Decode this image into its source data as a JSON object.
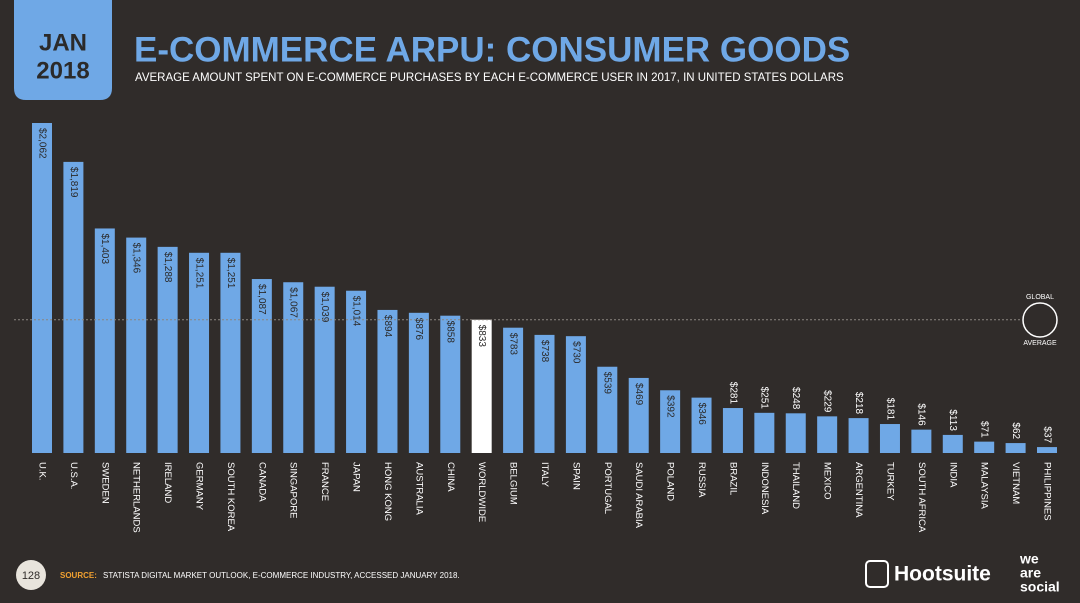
{
  "header": {
    "month": "JAN",
    "year": "2018"
  },
  "chart_data": {
    "type": "bar",
    "title": "E-COMMERCE ARPU: CONSUMER GOODS",
    "subtitle": "AVERAGE AMOUNT SPENT ON E-COMMERCE PURCHASES BY EACH E-COMMERCE USER IN 2017, IN UNITED STATES DOLLARS",
    "categories": [
      "U.K.",
      "U.S.A.",
      "SWEDEN",
      "NETHERLANDS",
      "IRELAND",
      "GERMANY",
      "SOUTH KOREA",
      "CANADA",
      "SINGAPORE",
      "FRANCE",
      "JAPAN",
      "HONG KONG",
      "AUSTRALIA",
      "CHINA",
      "WORLDWIDE",
      "BELGIUM",
      "ITALY",
      "SPAIN",
      "PORTUGAL",
      "SAUDI ARABIA",
      "POLAND",
      "RUSSIA",
      "BRAZIL",
      "INDONESIA",
      "THAILAND",
      "MEXICO",
      "ARGENTINA",
      "TURKEY",
      "SOUTH AFRICA",
      "INDIA",
      "MALAYSIA",
      "VIETNAM",
      "PHILIPPINES"
    ],
    "values": [
      2062,
      1819,
      1403,
      1346,
      1288,
      1251,
      1251,
      1087,
      1067,
      1039,
      1014,
      894,
      876,
      858,
      833,
      783,
      738,
      730,
      539,
      469,
      392,
      346,
      281,
      251,
      248,
      229,
      218,
      181,
      146,
      113,
      71,
      62,
      37
    ],
    "value_labels": [
      "$2,062",
      "$1,819",
      "$1,403",
      "$1,346",
      "$1,288",
      "$1,251",
      "$1,251",
      "$1,087",
      "$1,067",
      "$1,039",
      "$1,014",
      "$894",
      "$876",
      "$858",
      "$833",
      "$783",
      "$738",
      "$730",
      "$539",
      "$469",
      "$392",
      "$346",
      "$281",
      "$251",
      "$248",
      "$229",
      "$218",
      "$181",
      "$146",
      "$113",
      "$71",
      "$62",
      "$37"
    ],
    "colors": [
      "#6fa8e6",
      "#6fa8e6",
      "#6fa8e6",
      "#6fa8e6",
      "#6fa8e6",
      "#6fa8e6",
      "#6fa8e6",
      "#6fa8e6",
      "#6fa8e6",
      "#6fa8e6",
      "#6fa8e6",
      "#6fa8e6",
      "#6fa8e6",
      "#6fa8e6",
      "#ffffff",
      "#6fa8e6",
      "#6fa8e6",
      "#6fa8e6",
      "#6fa8e6",
      "#6fa8e6",
      "#6fa8e6",
      "#6fa8e6",
      "#6fa8e6",
      "#6fa8e6",
      "#6fa8e6",
      "#6fa8e6",
      "#6fa8e6",
      "#6fa8e6",
      "#6fa8e6",
      "#6fa8e6",
      "#6fa8e6",
      "#6fa8e6",
      "#6fa8e6"
    ],
    "reference_label": [
      "GLOBAL",
      "AVERAGE"
    ]
  },
  "footer": {
    "page": "128",
    "source_label": "SOURCE:",
    "source": "STATISTA DIGITAL MARKET OUTLOOK, E-COMMERCE INDUSTRY, ACCESSED JANUARY 2018."
  },
  "logos": {
    "hootsuite": "Hootsuite",
    "we_are_social": [
      "we",
      "are",
      "social"
    ]
  }
}
